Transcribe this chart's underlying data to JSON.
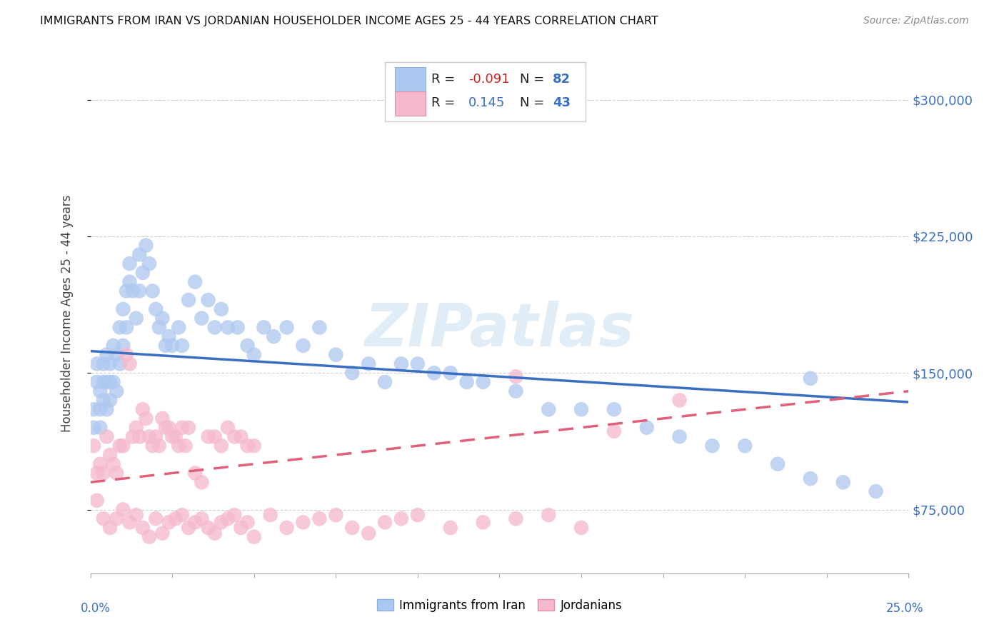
{
  "title": "IMMIGRANTS FROM IRAN VS JORDANIAN HOUSEHOLDER INCOME AGES 25 - 44 YEARS CORRELATION CHART",
  "source": "Source: ZipAtlas.com",
  "ylabel": "Householder Income Ages 25 - 44 years",
  "yticks": [
    75000,
    150000,
    225000,
    300000
  ],
  "ytick_labels": [
    "$75,000",
    "$150,000",
    "$225,000",
    "$300,000"
  ],
  "xlim": [
    0.0,
    0.25
  ],
  "ylim": [
    40000,
    325000
  ],
  "legend_labels": [
    "Immigrants from Iran",
    "Jordanians"
  ],
  "iran_color": "#adc8f0",
  "jordan_color": "#f5b8cc",
  "iran_line_color": "#3a6fc4",
  "jordan_line_color": "#e0607a",
  "iran_R": -0.091,
  "iran_N": 82,
  "jordan_R": 0.145,
  "jordan_N": 43,
  "iran_scatter_x": [
    0.001,
    0.001,
    0.002,
    0.002,
    0.003,
    0.003,
    0.003,
    0.004,
    0.004,
    0.004,
    0.005,
    0.005,
    0.005,
    0.006,
    0.006,
    0.006,
    0.007,
    0.007,
    0.008,
    0.008,
    0.009,
    0.009,
    0.01,
    0.01,
    0.011,
    0.011,
    0.012,
    0.012,
    0.013,
    0.014,
    0.015,
    0.015,
    0.016,
    0.017,
    0.018,
    0.019,
    0.02,
    0.021,
    0.022,
    0.023,
    0.024,
    0.025,
    0.027,
    0.028,
    0.03,
    0.032,
    0.034,
    0.036,
    0.038,
    0.04,
    0.042,
    0.045,
    0.048,
    0.05,
    0.053,
    0.056,
    0.06,
    0.065,
    0.07,
    0.075,
    0.08,
    0.085,
    0.09,
    0.095,
    0.1,
    0.105,
    0.11,
    0.115,
    0.12,
    0.13,
    0.14,
    0.15,
    0.16,
    0.17,
    0.18,
    0.19,
    0.2,
    0.21,
    0.22,
    0.23,
    0.24,
    0.22
  ],
  "iran_scatter_y": [
    130000,
    120000,
    145000,
    155000,
    140000,
    130000,
    120000,
    155000,
    135000,
    145000,
    160000,
    145000,
    130000,
    155000,
    145000,
    135000,
    165000,
    145000,
    160000,
    140000,
    175000,
    155000,
    185000,
    165000,
    195000,
    175000,
    210000,
    200000,
    195000,
    180000,
    215000,
    195000,
    205000,
    220000,
    210000,
    195000,
    185000,
    175000,
    180000,
    165000,
    170000,
    165000,
    175000,
    165000,
    190000,
    200000,
    180000,
    190000,
    175000,
    185000,
    175000,
    175000,
    165000,
    160000,
    175000,
    170000,
    175000,
    165000,
    175000,
    160000,
    150000,
    155000,
    145000,
    155000,
    155000,
    150000,
    150000,
    145000,
    145000,
    140000,
    130000,
    130000,
    130000,
    120000,
    115000,
    110000,
    110000,
    100000,
    92000,
    90000,
    85000,
    147000
  ],
  "jordan_scatter_x": [
    0.001,
    0.002,
    0.003,
    0.004,
    0.005,
    0.006,
    0.007,
    0.008,
    0.009,
    0.01,
    0.011,
    0.012,
    0.013,
    0.014,
    0.015,
    0.016,
    0.017,
    0.018,
    0.019,
    0.02,
    0.021,
    0.022,
    0.023,
    0.024,
    0.025,
    0.026,
    0.027,
    0.028,
    0.029,
    0.03,
    0.032,
    0.034,
    0.036,
    0.038,
    0.04,
    0.042,
    0.044,
    0.046,
    0.048,
    0.05,
    0.13,
    0.16,
    0.18
  ],
  "jordan_scatter_y": [
    110000,
    95000,
    100000,
    95000,
    115000,
    105000,
    100000,
    95000,
    110000,
    110000,
    160000,
    155000,
    115000,
    120000,
    115000,
    130000,
    125000,
    115000,
    110000,
    115000,
    110000,
    125000,
    120000,
    120000,
    115000,
    115000,
    110000,
    120000,
    110000,
    120000,
    95000,
    90000,
    115000,
    115000,
    110000,
    120000,
    115000,
    115000,
    110000,
    110000,
    148000,
    118000,
    135000
  ],
  "jordan_extra_low_x": [
    0.002,
    0.004,
    0.006,
    0.008,
    0.01,
    0.012,
    0.014,
    0.016,
    0.018,
    0.02,
    0.022,
    0.024,
    0.026,
    0.028,
    0.03,
    0.032,
    0.034,
    0.036,
    0.038,
    0.04,
    0.042,
    0.044,
    0.046,
    0.048,
    0.05,
    0.055,
    0.06,
    0.065,
    0.07,
    0.075,
    0.08,
    0.085,
    0.09,
    0.095,
    0.1,
    0.11,
    0.12,
    0.13,
    0.14,
    0.15
  ],
  "jordan_extra_low_y": [
    80000,
    70000,
    65000,
    70000,
    75000,
    68000,
    72000,
    65000,
    60000,
    70000,
    62000,
    68000,
    70000,
    72000,
    65000,
    68000,
    70000,
    65000,
    62000,
    68000,
    70000,
    72000,
    65000,
    68000,
    60000,
    72000,
    65000,
    68000,
    70000,
    72000,
    65000,
    62000,
    68000,
    70000,
    72000,
    65000,
    68000,
    70000,
    72000,
    65000
  ],
  "watermark": "ZIPatlas",
  "watermark_color": "#c8ddf0",
  "background_color": "#ffffff",
  "grid_color": "#d0d0d0"
}
